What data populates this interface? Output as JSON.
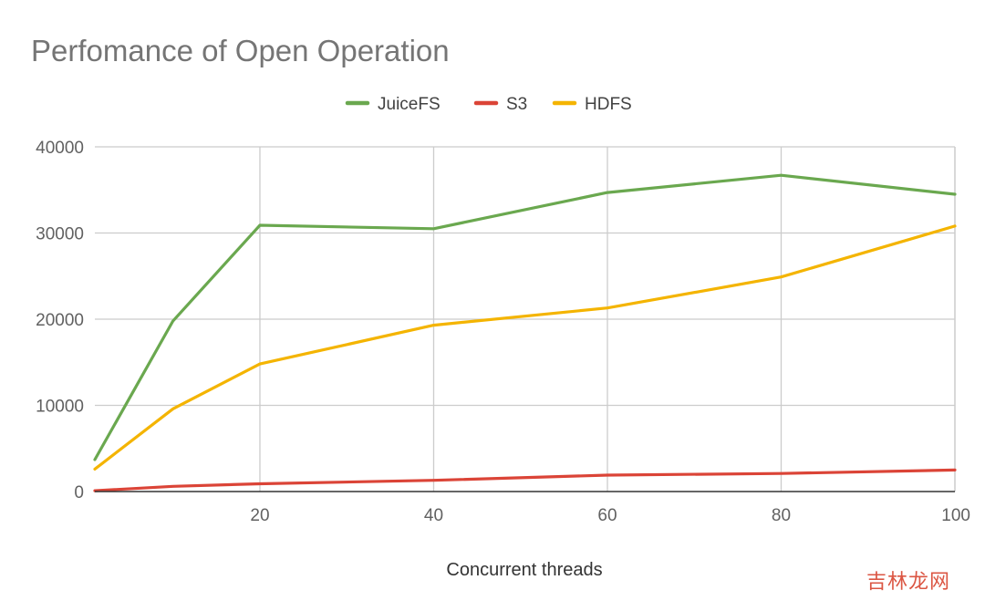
{
  "chart_data": {
    "type": "line",
    "title": "Perfomance of Open Operation",
    "xlabel": "Concurrent threads",
    "ylabel": "",
    "x": [
      1,
      10,
      20,
      40,
      60,
      80,
      100
    ],
    "xlim": [
      1,
      100
    ],
    "ylim": [
      0,
      40000
    ],
    "x_ticks": [
      20,
      40,
      60,
      80,
      100
    ],
    "y_ticks": [
      0,
      10000,
      20000,
      30000,
      40000
    ],
    "grid": true,
    "legend_position": "top",
    "series": [
      {
        "name": "JuiceFS",
        "color": "#6aa84f",
        "values": [
          3700,
          19800,
          30900,
          30500,
          34700,
          36700,
          34500
        ]
      },
      {
        "name": "S3",
        "color": "#db4437",
        "values": [
          100,
          600,
          900,
          1300,
          1900,
          2100,
          2500
        ]
      },
      {
        "name": "HDFS",
        "color": "#f4b400",
        "values": [
          2600,
          9600,
          14800,
          19300,
          21300,
          24900,
          30800
        ]
      }
    ]
  },
  "watermark": "吉林龙网"
}
